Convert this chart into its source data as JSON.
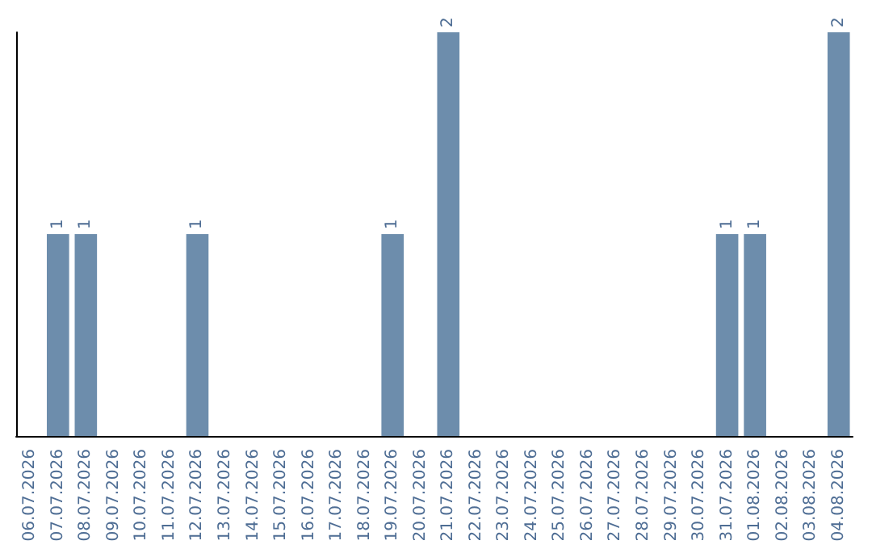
{
  "chart_data": {
    "type": "bar",
    "categories": [
      "06.07.2026",
      "07.07.2026",
      "08.07.2026",
      "09.07.2026",
      "10.07.2026",
      "11.07.2026",
      "12.07.2026",
      "13.07.2026",
      "14.07.2026",
      "15.07.2026",
      "16.07.2026",
      "17.07.2026",
      "18.07.2026",
      "19.07.2026",
      "20.07.2026",
      "21.07.2026",
      "22.07.2026",
      "23.07.2026",
      "24.07.2026",
      "25.07.2026",
      "26.07.2026",
      "27.07.2026",
      "28.07.2026",
      "29.07.2026",
      "30.07.2026",
      "31.07.2026",
      "01.08.2026",
      "02.08.2026",
      "03.08.2026",
      "04.08.2026"
    ],
    "values": [
      0,
      1,
      1,
      0,
      0,
      0,
      1,
      0,
      0,
      0,
      0,
      0,
      0,
      1,
      0,
      2,
      0,
      0,
      0,
      0,
      0,
      0,
      0,
      0,
      0,
      1,
      1,
      0,
      0,
      2
    ],
    "value_labels": [
      null,
      "1",
      "1",
      null,
      null,
      null,
      "1",
      null,
      null,
      null,
      null,
      null,
      null,
      "1",
      null,
      "2",
      null,
      null,
      null,
      null,
      null,
      null,
      null,
      null,
      null,
      "1",
      "1",
      null,
      null,
      "2"
    ],
    "color": "#6d8dac",
    "tick_labels": "x"
  }
}
